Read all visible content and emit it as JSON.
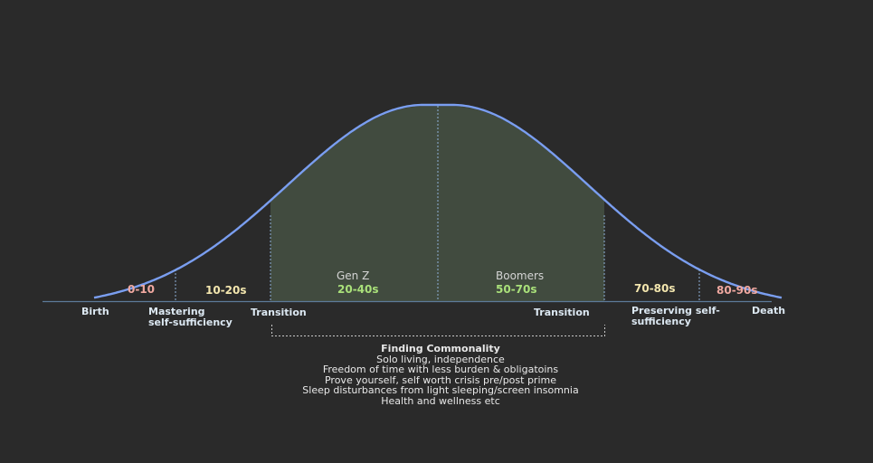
{
  "markers": {
    "birth": "Birth",
    "mastering_line1": "Mastering",
    "mastering_line2": "self-sufficiency",
    "transition_left": "Transition",
    "transition_right": "Transition",
    "preserving_line1": "Preserving self-",
    "preserving_line2": "sufficiency",
    "death": "Death"
  },
  "age_groups": [
    {
      "label": "0-10",
      "color": "#f0a8a0"
    },
    {
      "label": "10-20s",
      "color": "#f3e6ae"
    },
    {
      "label": "20-40s",
      "color": "#a9e07a"
    },
    {
      "label": "50-70s",
      "color": "#a9e07a"
    },
    {
      "label": "70-80s",
      "color": "#f3e6ae"
    },
    {
      "label": "80-90s",
      "color": "#f0a8a0"
    }
  ],
  "generations": {
    "left": "Gen Z",
    "right": "Boomers"
  },
  "commonality": {
    "heading": "Finding Commonality",
    "items": [
      "Solo living, independence",
      "Freedom of time with less burden & obligatoins",
      "Prove yourself, self worth crisis pre/post prime",
      "Sleep disturbances from light sleeping/screen insomnia",
      "Health and wellness etc"
    ]
  },
  "colors": {
    "background": "#2a2a2a",
    "curve": "#7a9ef0",
    "fill": "#414b3f",
    "baseline": "#5d7a99",
    "marker_labels": "#dce8f2"
  },
  "icons": []
}
